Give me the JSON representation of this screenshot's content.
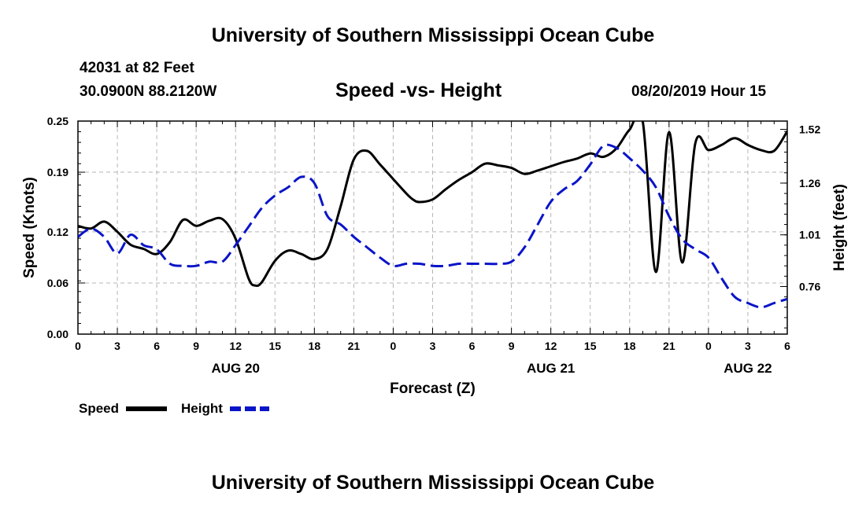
{
  "header": {
    "title": "University of Southern Mississippi Ocean Cube",
    "station": "42031 at 82 Feet",
    "coords": "30.0900N 88.2120W",
    "chart_title": "Speed -vs- Height",
    "timestamp": "08/20/2019 Hour 15"
  },
  "footer": {
    "title": "University of Southern Mississippi Ocean Cube"
  },
  "legend": {
    "speed": "Speed",
    "height": "Height"
  },
  "colors": {
    "speed": "#000000",
    "height": "#0a14c8",
    "grid": "#b4b4b4"
  },
  "chart_data": {
    "type": "line",
    "title": "Speed -vs- Height",
    "xlabel": "Forecast (Z)",
    "ylabel": "Speed (Knots)",
    "ylabel_right": "Height (feet)",
    "xlim": [
      0,
      54
    ],
    "ylim": [
      0,
      0.25
    ],
    "ylim_right": [
      0.53,
      1.56
    ],
    "x_ticks": [
      0,
      3,
      6,
      9,
      12,
      15,
      18,
      21,
      24,
      27,
      30,
      33,
      36,
      39,
      42,
      45,
      48,
      51,
      54
    ],
    "x_tick_labels": [
      "0",
      "3",
      "6",
      "9",
      "12",
      "15",
      "18",
      "21",
      "0",
      "3",
      "6",
      "9",
      "12",
      "15",
      "18",
      "21",
      "0",
      "3",
      "6"
    ],
    "y_ticks": [
      0.0,
      0.06,
      0.12,
      0.19,
      0.25
    ],
    "y_tick_labels": [
      "0.00",
      "0.06",
      "0.12",
      "0.19",
      "0.25"
    ],
    "y_ticks_right": [
      0.76,
      1.01,
      1.26,
      1.52
    ],
    "y_tick_labels_right": [
      "0.76",
      "1.01",
      "1.26",
      "1.52"
    ],
    "date_labels": [
      {
        "x": 12,
        "label": "AUG 20"
      },
      {
        "x": 36,
        "label": "AUG 21"
      },
      {
        "x": 51,
        "label": "AUG 22"
      }
    ],
    "grid": true,
    "series": [
      {
        "name": "Speed",
        "axis": "left",
        "style": "solid",
        "x": [
          0,
          1,
          2,
          3,
          4,
          5,
          6,
          7,
          8,
          9,
          10,
          11,
          12,
          13,
          13.5,
          14,
          15,
          16,
          17,
          18,
          19,
          20,
          21,
          22,
          23,
          24,
          25,
          25.5,
          26,
          27,
          28,
          29,
          30,
          31,
          32,
          33,
          34,
          35,
          36,
          37,
          38,
          39,
          40,
          41,
          42,
          43,
          44,
          45,
          46,
          47,
          48,
          49,
          50,
          51,
          52,
          53,
          54
        ],
        "values": [
          0.127,
          0.124,
          0.132,
          0.12,
          0.105,
          0.1,
          0.094,
          0.108,
          0.134,
          0.127,
          0.133,
          0.135,
          0.112,
          0.065,
          0.057,
          0.061,
          0.086,
          0.098,
          0.094,
          0.088,
          0.1,
          0.15,
          0.205,
          0.215,
          0.199,
          0.182,
          0.165,
          0.158,
          0.155,
          0.158,
          0.17,
          0.181,
          0.19,
          0.2,
          0.198,
          0.195,
          0.188,
          0.192,
          0.197,
          0.202,
          0.206,
          0.212,
          0.208,
          0.218,
          0.24,
          0.249,
          0.073,
          0.237,
          0.084,
          0.224,
          0.216,
          0.222,
          0.23,
          0.222,
          0.216,
          0.215,
          0.238
        ]
      },
      {
        "name": "Height",
        "axis": "right",
        "style": "dashed",
        "x": [
          0,
          1,
          2,
          3,
          4,
          5,
          6,
          7,
          8,
          9,
          10,
          11,
          12,
          13,
          14,
          15,
          16,
          17,
          18,
          19,
          20,
          21,
          22,
          23,
          24,
          25,
          26,
          27,
          28,
          29,
          30,
          31,
          32,
          33,
          34,
          35,
          36,
          37,
          38,
          39,
          40,
          41,
          42,
          43,
          44,
          45,
          46,
          47,
          48,
          49,
          50,
          51,
          52,
          53,
          54
        ],
        "values": [
          1.0,
          1.04,
          1.0,
          0.92,
          1.01,
          0.96,
          0.94,
          0.87,
          0.86,
          0.86,
          0.88,
          0.88,
          0.96,
          1.05,
          1.14,
          1.2,
          1.24,
          1.29,
          1.26,
          1.1,
          1.06,
          1.0,
          0.95,
          0.9,
          0.86,
          0.87,
          0.87,
          0.86,
          0.86,
          0.87,
          0.87,
          0.87,
          0.87,
          0.88,
          0.95,
          1.06,
          1.17,
          1.23,
          1.27,
          1.35,
          1.44,
          1.43,
          1.38,
          1.32,
          1.24,
          1.1,
          0.99,
          0.94,
          0.9,
          0.8,
          0.71,
          0.68,
          0.66,
          0.68,
          0.7
        ]
      }
    ]
  }
}
